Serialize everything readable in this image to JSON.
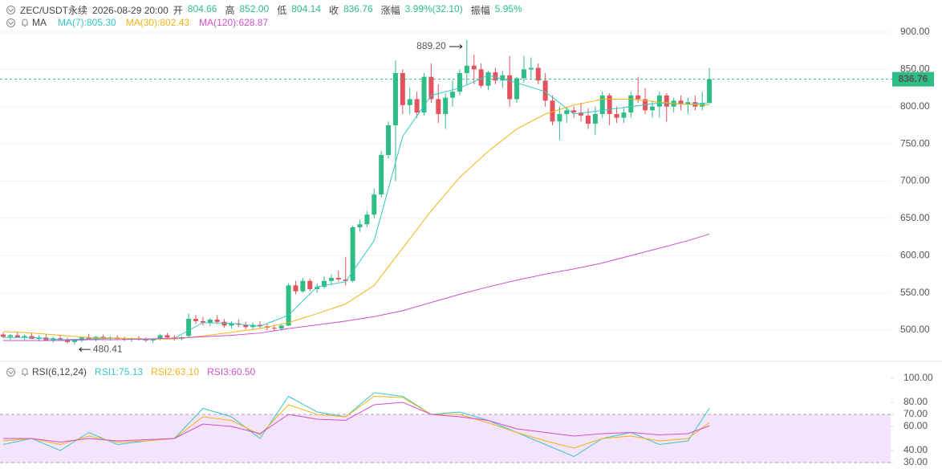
{
  "header": {
    "symbol": "ZEC/USDT永续",
    "time": "2026-08-29 20:00",
    "fields": [
      {
        "label": "开",
        "value": "804.66"
      },
      {
        "label": "高",
        "value": "852.00"
      },
      {
        "label": "低",
        "value": "804.14"
      },
      {
        "label": "收",
        "value": "836.76"
      },
      {
        "label": "涨幅",
        "value": "3.99%(32.10)"
      },
      {
        "label": "振幅",
        "value": "5.95%"
      }
    ],
    "ma_label": "MA"
  },
  "chart_data": [
    {
      "type": "candlestick",
      "up_color": "#2ebd85",
      "down_color": "#e4525e",
      "candles": [
        [
          494,
          497,
          489,
          491
        ],
        [
          491,
          495,
          487,
          493
        ],
        [
          493,
          498,
          490,
          490
        ],
        [
          490,
          494,
          486,
          492
        ],
        [
          492,
          496,
          489,
          488
        ],
        [
          488,
          493,
          485,
          490
        ],
        [
          490,
          494,
          487,
          486
        ],
        [
          486,
          491,
          483,
          489
        ],
        [
          489,
          493,
          486,
          487
        ],
        [
          487,
          490,
          482,
          484
        ],
        [
          484,
          488,
          480.41,
          486
        ],
        [
          486,
          491,
          484,
          490
        ],
        [
          490,
          495,
          487,
          488
        ],
        [
          488,
          492,
          485,
          491
        ],
        [
          491,
          494,
          487,
          489
        ],
        [
          489,
          492,
          486,
          490
        ],
        [
          490,
          493,
          487,
          488
        ],
        [
          488,
          491,
          485,
          487
        ],
        [
          487,
          490,
          484,
          489
        ],
        [
          489,
          492,
          486,
          487
        ],
        [
          487,
          490,
          484,
          486
        ],
        [
          486,
          489,
          483,
          488
        ],
        [
          488,
          495,
          486,
          493
        ],
        [
          493,
          496,
          489,
          490
        ],
        [
          490,
          493,
          486,
          488
        ],
        [
          488,
          492,
          486,
          490
        ],
        [
          492,
          522,
          490,
          515
        ],
        [
          515,
          520,
          508,
          512
        ],
        [
          512,
          518,
          506,
          510
        ],
        [
          510,
          516,
          505,
          514
        ],
        [
          514,
          520,
          508,
          511
        ],
        [
          511,
          515,
          503,
          506
        ],
        [
          506,
          512,
          502,
          509
        ],
        [
          509,
          514,
          504,
          507
        ],
        [
          507,
          511,
          501,
          504
        ],
        [
          504,
          510,
          500,
          507
        ],
        [
          507,
          512,
          502,
          505
        ],
        [
          505,
          509,
          500,
          503
        ],
        [
          503,
          507,
          499,
          502
        ],
        [
          502,
          508,
          499,
          506
        ],
        [
          506,
          563,
          505,
          560
        ],
        [
          560,
          566,
          548,
          552
        ],
        [
          552,
          570,
          550,
          566
        ],
        [
          566,
          569,
          552,
          555
        ],
        [
          555,
          562,
          550,
          558
        ],
        [
          558,
          572,
          556,
          566
        ],
        [
          566,
          575,
          560,
          570
        ],
        [
          570,
          580,
          565,
          568
        ],
        [
          568,
          598,
          560,
          566
        ],
        [
          566,
          640,
          564,
          638
        ],
        [
          638,
          648,
          632,
          642
        ],
        [
          642,
          660,
          638,
          655
        ],
        [
          655,
          690,
          650,
          682
        ],
        [
          682,
          740,
          678,
          735
        ],
        [
          735,
          780,
          730,
          775
        ],
        [
          775,
          862,
          700,
          845
        ],
        [
          845,
          850,
          790,
          802
        ],
        [
          802,
          825,
          790,
          810
        ],
        [
          810,
          820,
          785,
          792
        ],
        [
          792,
          845,
          788,
          840
        ],
        [
          840,
          858,
          805,
          810
        ],
        [
          810,
          830,
          778,
          790
        ],
        [
          790,
          818,
          770,
          812
        ],
        [
          812,
          835,
          800,
          820
        ],
        [
          820,
          850,
          815,
          845
        ],
        [
          845,
          889.2,
          830,
          855
        ],
        [
          855,
          870,
          830,
          850
        ],
        [
          850,
          858,
          825,
          828
        ],
        [
          828,
          848,
          822,
          846
        ],
        [
          846,
          852,
          830,
          835
        ],
        [
          835,
          848,
          825,
          842
        ],
        [
          842,
          868,
          800,
          810
        ],
        [
          810,
          840,
          805,
          838
        ],
        [
          838,
          868,
          832,
          850
        ],
        [
          850,
          866,
          838,
          852
        ],
        [
          852,
          858,
          830,
          835
        ],
        [
          835,
          845,
          800,
          808
        ],
        [
          808,
          815,
          775,
          780
        ],
        [
          780,
          800,
          755,
          790
        ],
        [
          790,
          800,
          778,
          795
        ],
        [
          795,
          800,
          785,
          792
        ],
        [
          792,
          805,
          780,
          788
        ],
        [
          788,
          798,
          770,
          777
        ],
        [
          777,
          800,
          762,
          790
        ],
        [
          790,
          820,
          785,
          815
        ],
        [
          815,
          818,
          775,
          790
        ],
        [
          790,
          800,
          778,
          785
        ],
        [
          785,
          798,
          778,
          792
        ],
        [
          792,
          820,
          785,
          815
        ],
        [
          815,
          840,
          805,
          810
        ],
        [
          810,
          825,
          790,
          795
        ],
        [
          795,
          808,
          785,
          800
        ],
        [
          800,
          820,
          785,
          815
        ],
        [
          815,
          818,
          780,
          800
        ],
        [
          800,
          812,
          792,
          808
        ],
        [
          808,
          815,
          795,
          803
        ],
        [
          803,
          812,
          790,
          806
        ],
        [
          806,
          815,
          795,
          800
        ],
        [
          800,
          820,
          795,
          804.66
        ],
        [
          804.66,
          852,
          804.14,
          836.76
        ]
      ],
      "ylim": [
        470,
        920
      ],
      "yticks": [
        {
          "value": 900,
          "label": "900.00"
        },
        {
          "value": 850,
          "label": "850.00"
        },
        {
          "value": 800,
          "label": "800.00"
        },
        {
          "value": 750,
          "label": "750.00"
        },
        {
          "value": 700,
          "label": "700.00"
        },
        {
          "value": 650,
          "label": "650.00"
        },
        {
          "value": 600,
          "label": "600.00"
        },
        {
          "value": 550,
          "label": "550.00"
        },
        {
          "value": 500,
          "label": "500.00"
        }
      ],
      "grid": true,
      "current_price": 836.76,
      "annotations": [
        {
          "label": "889.20",
          "value": 889.2
        },
        {
          "label": "480.41",
          "value": 480.41
        }
      ],
      "x": [
        0,
        4,
        8,
        12,
        16,
        20,
        24,
        28,
        32,
        36,
        40,
        44,
        48,
        52,
        56,
        60,
        64,
        68,
        72,
        76,
        80,
        84,
        88,
        92,
        96,
        99
      ],
      "series": [
        {
          "name": "MA(7):805.30",
          "color": "#36c6c6",
          "values": [
            490,
            490,
            487,
            488,
            489,
            487,
            489,
            510,
            509,
            505,
            520,
            558,
            565,
            620,
            760,
            815,
            825,
            842,
            832,
            820,
            790,
            795,
            800,
            805,
            803,
            805.3
          ]
        },
        {
          "name": "MA(30):802.43",
          "color": "#f0b419",
          "values": [
            498,
            496,
            493,
            490,
            489,
            488,
            488,
            492,
            497,
            502,
            510,
            522,
            535,
            560,
            610,
            660,
            705,
            740,
            770,
            790,
            802,
            810,
            810,
            806,
            803,
            802.43
          ]
        },
        {
          "name": "MA(120):628.87",
          "color": "#d24fcc",
          "values": [
            486,
            486,
            486,
            487,
            487,
            488,
            489,
            491,
            493,
            496,
            502,
            507,
            512,
            518,
            526,
            537,
            548,
            558,
            567,
            575,
            582,
            590,
            600,
            610,
            620,
            628.87
          ]
        }
      ]
    },
    {
      "type": "line",
      "title": "RSI(6,12,24)",
      "band": [
        30,
        70
      ],
      "band_color": "#f3e3fb",
      "x": [
        0,
        4,
        8,
        12,
        16,
        20,
        24,
        28,
        32,
        36,
        40,
        44,
        48,
        52,
        56,
        60,
        64,
        68,
        72,
        76,
        80,
        84,
        88,
        92,
        96,
        99
      ],
      "ylim": [
        25,
        105
      ],
      "yticks": [
        {
          "value": 100,
          "label": "100.00"
        },
        {
          "value": 80,
          "label": "80.00"
        },
        {
          "value": 70,
          "label": "70.00"
        },
        {
          "value": 60,
          "label": "60.00"
        },
        {
          "value": 40,
          "label": "40.00"
        },
        {
          "value": 30,
          "label": "30.00"
        }
      ],
      "series": [
        {
          "name": "RSI1:75.13",
          "color": "#36c6c6",
          "values": [
            45,
            50,
            40,
            55,
            45,
            48,
            50,
            75,
            68,
            50,
            85,
            72,
            68,
            88,
            85,
            70,
            72,
            65,
            55,
            45,
            35,
            50,
            55,
            45,
            48,
            75.13
          ]
        },
        {
          "name": "RSI2:63.10",
          "color": "#f0b419",
          "values": [
            48,
            50,
            45,
            52,
            47,
            48,
            50,
            68,
            65,
            53,
            78,
            70,
            68,
            85,
            84,
            70,
            70,
            63,
            55,
            48,
            42,
            50,
            52,
            48,
            50,
            63.1
          ]
        },
        {
          "name": "RSI3:60.50",
          "color": "#d24fcc",
          "values": [
            50,
            50,
            47,
            50,
            48,
            49,
            50,
            62,
            60,
            54,
            70,
            66,
            65,
            78,
            80,
            70,
            68,
            65,
            58,
            55,
            52,
            54,
            55,
            53,
            54,
            60.5
          ]
        }
      ]
    }
  ]
}
